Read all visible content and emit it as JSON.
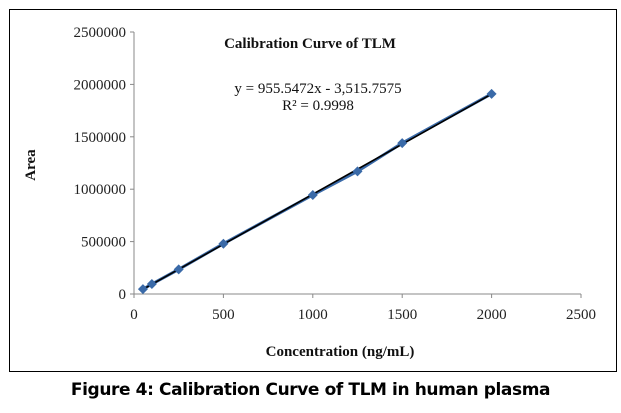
{
  "chart_data": {
    "type": "scatter",
    "title": "Calibration Curve of  TLM",
    "xlabel": "Concentration (ng/mL)",
    "ylabel": "Area",
    "xlim": [
      0,
      2500
    ],
    "ylim": [
      0,
      2500000
    ],
    "xticks": [
      0,
      500,
      1000,
      1500,
      2000,
      2500
    ],
    "yticks": [
      0,
      500000,
      1000000,
      1500000,
      2000000,
      2500000
    ],
    "grid": false,
    "series": [
      {
        "name": "Area",
        "color": "#3a6aa8",
        "x": [
          50,
          100,
          250,
          500,
          1000,
          1250,
          1500,
          2000
        ],
        "y": [
          46000,
          95000,
          235000,
          480000,
          945000,
          1170000,
          1440000,
          1910000
        ]
      }
    ],
    "trendline": {
      "slope": 955.5472,
      "intercept": -3515.7575,
      "color": "#000000",
      "equation": "y = 955.5472x - 3,515.7575",
      "r2": "R² = 0.9998"
    }
  },
  "caption": "Figure 4: Calibration Curve of TLM in human plasma"
}
